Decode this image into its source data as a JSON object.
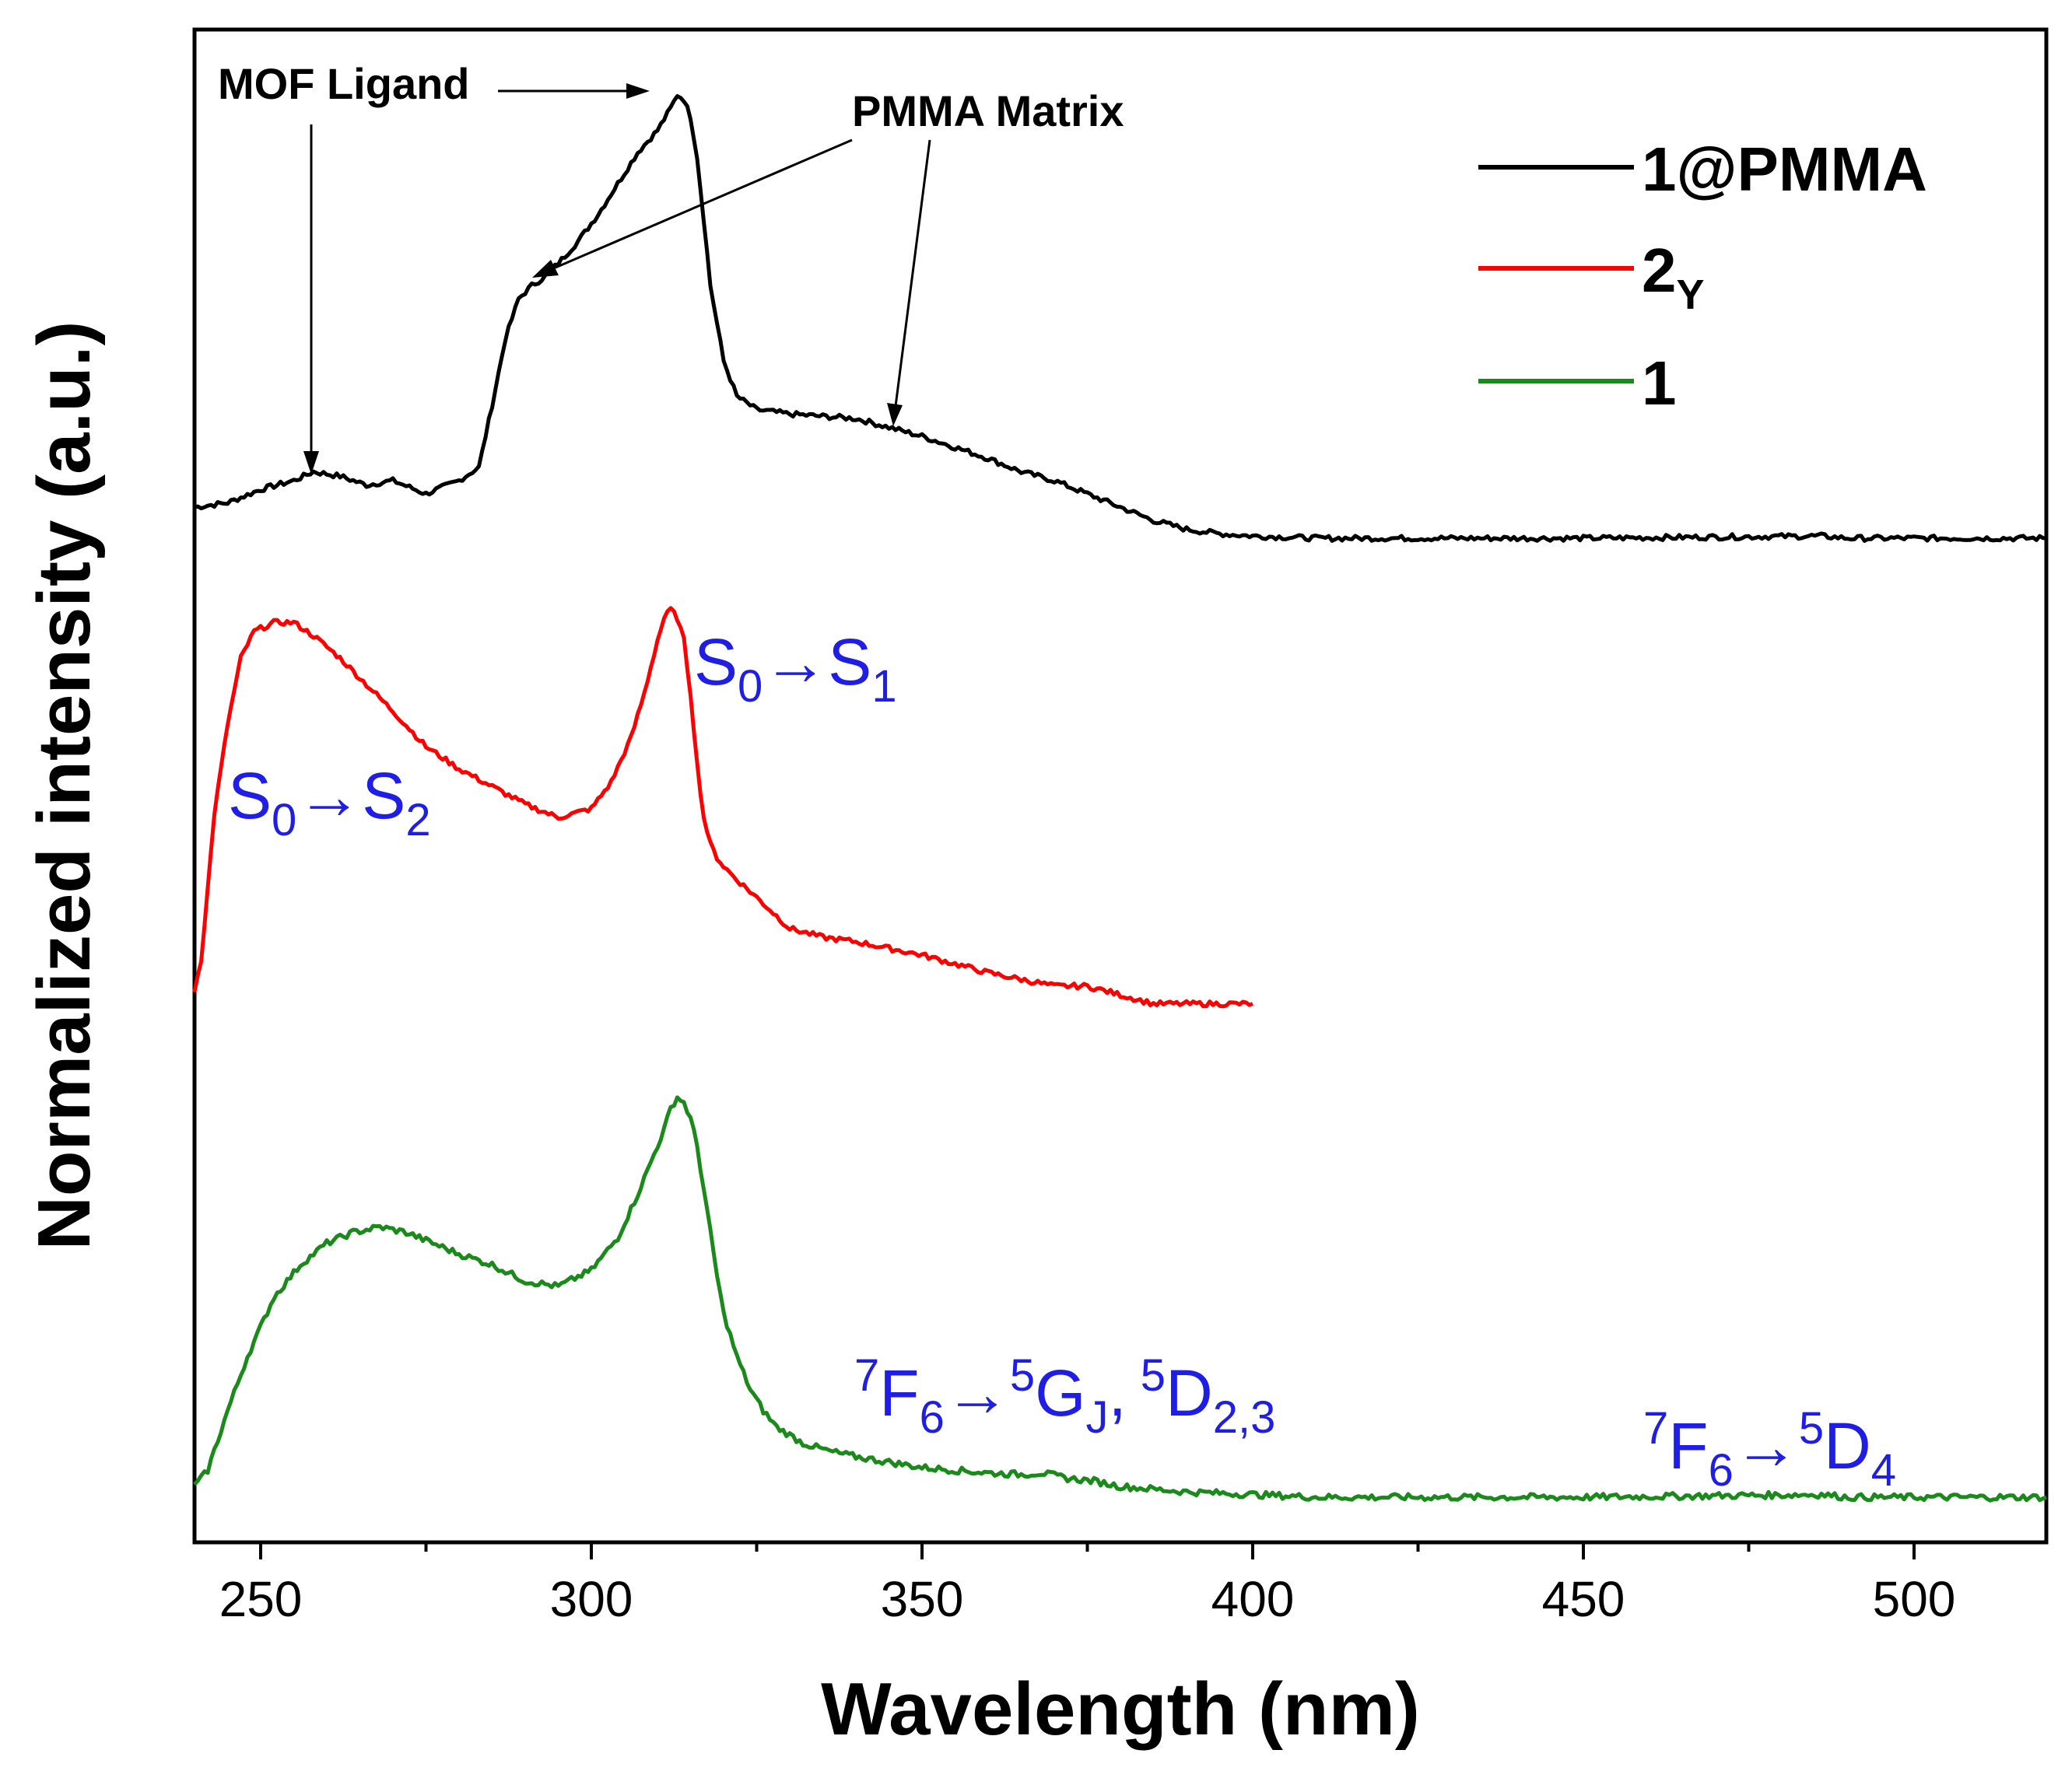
{
  "chart_data": {
    "type": "line",
    "title": "",
    "xlabel": "Wavelength (nm)",
    "ylabel": "Normalized intensity (a.u.)",
    "xlim": [
      240,
      520
    ],
    "xticks": [
      250,
      300,
      350,
      400,
      450,
      500
    ],
    "xticks_minor": [
      275,
      325,
      375,
      425,
      475
    ],
    "yticks": [],
    "grid": false,
    "legend_position": "top-right",
    "series": [
      {
        "name": "1@PMMA",
        "color": "#000000",
        "offset": 2.0,
        "x": [
          240,
          245,
          250,
          255,
          258,
          262,
          266,
          270,
          275,
          280,
          283,
          285,
          287,
          289,
          291,
          293,
          295,
          298,
          301,
          304,
          307,
          310,
          312,
          313,
          314,
          315,
          316,
          317,
          318,
          320,
          322,
          325,
          330,
          340,
          350,
          360,
          365,
          370,
          375,
          380,
          385,
          390,
          395,
          400,
          410,
          450,
          486,
          490,
          500,
          520
        ],
        "values": [
          0.07,
          0.08,
          0.11,
          0.13,
          0.15,
          0.14,
          0.12,
          0.13,
          0.1,
          0.13,
          0.16,
          0.3,
          0.45,
          0.54,
          0.57,
          0.59,
          0.62,
          0.67,
          0.73,
          0.8,
          0.87,
          0.92,
          0.97,
          1.0,
          0.99,
          0.95,
          0.86,
          0.72,
          0.57,
          0.4,
          0.32,
          0.29,
          0.28,
          0.27,
          0.23,
          0.18,
          0.15,
          0.13,
          0.1,
          0.07,
          0.04,
          0.02,
          0.01,
          0.005,
          0.0,
          0.0,
          0.005,
          0.0,
          0.0,
          0.0
        ]
      },
      {
        "name": "2_Y",
        "legend_main": "2",
        "legend_sub": "Y",
        "color": "#ff0000",
        "offset": 1.0,
        "x": [
          240,
          241,
          242,
          243,
          245,
          247,
          249,
          252,
          255,
          258,
          262,
          266,
          270,
          275,
          280,
          285,
          290,
          295,
          300,
          303,
          306,
          308,
          310,
          311,
          312,
          313,
          314,
          315,
          316,
          317,
          318,
          319,
          320,
          322,
          325,
          330,
          335,
          340,
          350,
          360,
          370,
          375,
          380,
          385,
          390,
          400
        ],
        "values": [
          0.05,
          0.12,
          0.28,
          0.45,
          0.65,
          0.8,
          0.86,
          0.88,
          0.88,
          0.85,
          0.8,
          0.74,
          0.68,
          0.6,
          0.55,
          0.51,
          0.47,
          0.44,
          0.46,
          0.52,
          0.62,
          0.72,
          0.84,
          0.89,
          0.91,
          0.89,
          0.84,
          0.72,
          0.56,
          0.44,
          0.38,
          0.35,
          0.33,
          0.3,
          0.26,
          0.19,
          0.17,
          0.16,
          0.13,
          0.09,
          0.06,
          0.06,
          0.04,
          0.02,
          0.02,
          0.02
        ]
      },
      {
        "name": "1",
        "color": "#1a8a1a",
        "offset": 0.0,
        "x": [
          240,
          242,
          245,
          248,
          252,
          256,
          260,
          264,
          268,
          272,
          276,
          280,
          285,
          290,
          295,
          300,
          304,
          307,
          309,
          311,
          312,
          313,
          314,
          315,
          316,
          317,
          318,
          319,
          320,
          322,
          324,
          326,
          328,
          332,
          336,
          340,
          345,
          350,
          355,
          360,
          365,
          368,
          372,
          376,
          380,
          385,
          390,
          400,
          410,
          450,
          486,
          490,
          520
        ],
        "values": [
          0.02,
          0.05,
          0.16,
          0.26,
          0.37,
          0.43,
          0.47,
          0.49,
          0.5,
          0.49,
          0.47,
          0.45,
          0.43,
          0.4,
          0.39,
          0.42,
          0.48,
          0.56,
          0.62,
          0.68,
          0.72,
          0.74,
          0.73,
          0.7,
          0.65,
          0.57,
          0.49,
          0.41,
          0.34,
          0.26,
          0.2,
          0.16,
          0.13,
          0.1,
          0.085,
          0.075,
          0.065,
          0.055,
          0.05,
          0.045,
          0.042,
          0.045,
          0.035,
          0.03,
          0.02,
          0.015,
          0.01,
          0.005,
          0.0,
          0.0,
          0.005,
          0.0,
          0.0
        ]
      }
    ],
    "annotations": {
      "mof_ligand": "MOF Ligand",
      "pmma_matrix": "PMMA Matrix",
      "s0_s1": {
        "a": "S",
        "a_sub": "0",
        "arrow": "→",
        "b": "S",
        "b_sub": "1"
      },
      "s0_s2": {
        "a": "S",
        "a_sub": "0",
        "arrow": "→",
        "b": "S",
        "b_sub": "2"
      },
      "f6_gj": {
        "sup1": "7",
        "f": "F",
        "sub1": "6",
        "arrow": "→",
        "sup2": "5",
        "g": "G",
        "sub2": "J",
        "comma": ",",
        "sup3": "5",
        "d": "D",
        "sub3": "2,3"
      },
      "f6_d4": {
        "sup1": "7",
        "f": "F",
        "sub1": "6",
        "arrow": "→",
        "sup2": "5",
        "d": "D",
        "sub2": "4"
      }
    }
  }
}
